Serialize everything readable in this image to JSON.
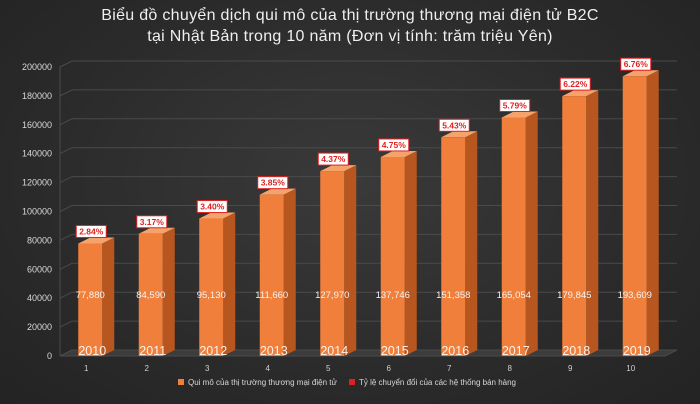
{
  "title_lines": [
    "Biểu đồ chuyển dịch qui mô của thị trường thương mại điện tử B2C",
    "tại Nhật Bản trong 10 năm (Đơn vị tính: trăm triệu Yên)"
  ],
  "colors": {
    "bar_front": "#f07f3b",
    "bar_side": "#b8561f",
    "bar_top": "#f6a36b",
    "rate_box_border": "#e02020",
    "rate_text": "#e02020",
    "grid": "#4a4a4a",
    "background": "#2d2d2d"
  },
  "chart_data": {
    "type": "bar",
    "x": [
      1,
      2,
      3,
      4,
      5,
      6,
      7,
      8,
      9,
      10
    ],
    "categories": [
      "2010",
      "2011",
      "2012",
      "2013",
      "2014",
      "2015",
      "2016",
      "2017",
      "2018",
      "2019"
    ],
    "series": [
      {
        "name": "Qui mô của thị trường thương mại điện tử",
        "values": [
          77880,
          84590,
          95130,
          111660,
          127970,
          137746,
          151358,
          165054,
          179845,
          193609
        ],
        "labels": [
          "77,880",
          "84,590",
          "95,130",
          "111,660",
          "127,970",
          "137,746",
          "151,358",
          "165,054",
          "179,845",
          "193,609"
        ]
      },
      {
        "name": "Tỷ lệ chuyển đổi của các hệ thống bán hàng",
        "values": [
          2.84,
          3.17,
          3.4,
          3.85,
          4.37,
          4.75,
          5.43,
          5.79,
          6.22,
          6.76
        ],
        "labels": [
          "2.84%",
          "3.17%",
          "3.40%",
          "3.85%",
          "4.37%",
          "4.75%",
          "5.43%",
          "5.79%",
          "6.22%",
          "6.76%"
        ]
      }
    ],
    "ylim": [
      0,
      200000
    ],
    "yticks": [
      0,
      20000,
      40000,
      60000,
      80000,
      100000,
      120000,
      140000,
      160000,
      180000,
      200000
    ],
    "ytick_labels": [
      "0",
      "20000",
      "40000",
      "60000",
      "80000",
      "100000",
      "120000",
      "140000",
      "160000",
      "180000",
      "200000"
    ],
    "grid": true,
    "legend_position": "bottom",
    "chart_style": "3d-column"
  }
}
